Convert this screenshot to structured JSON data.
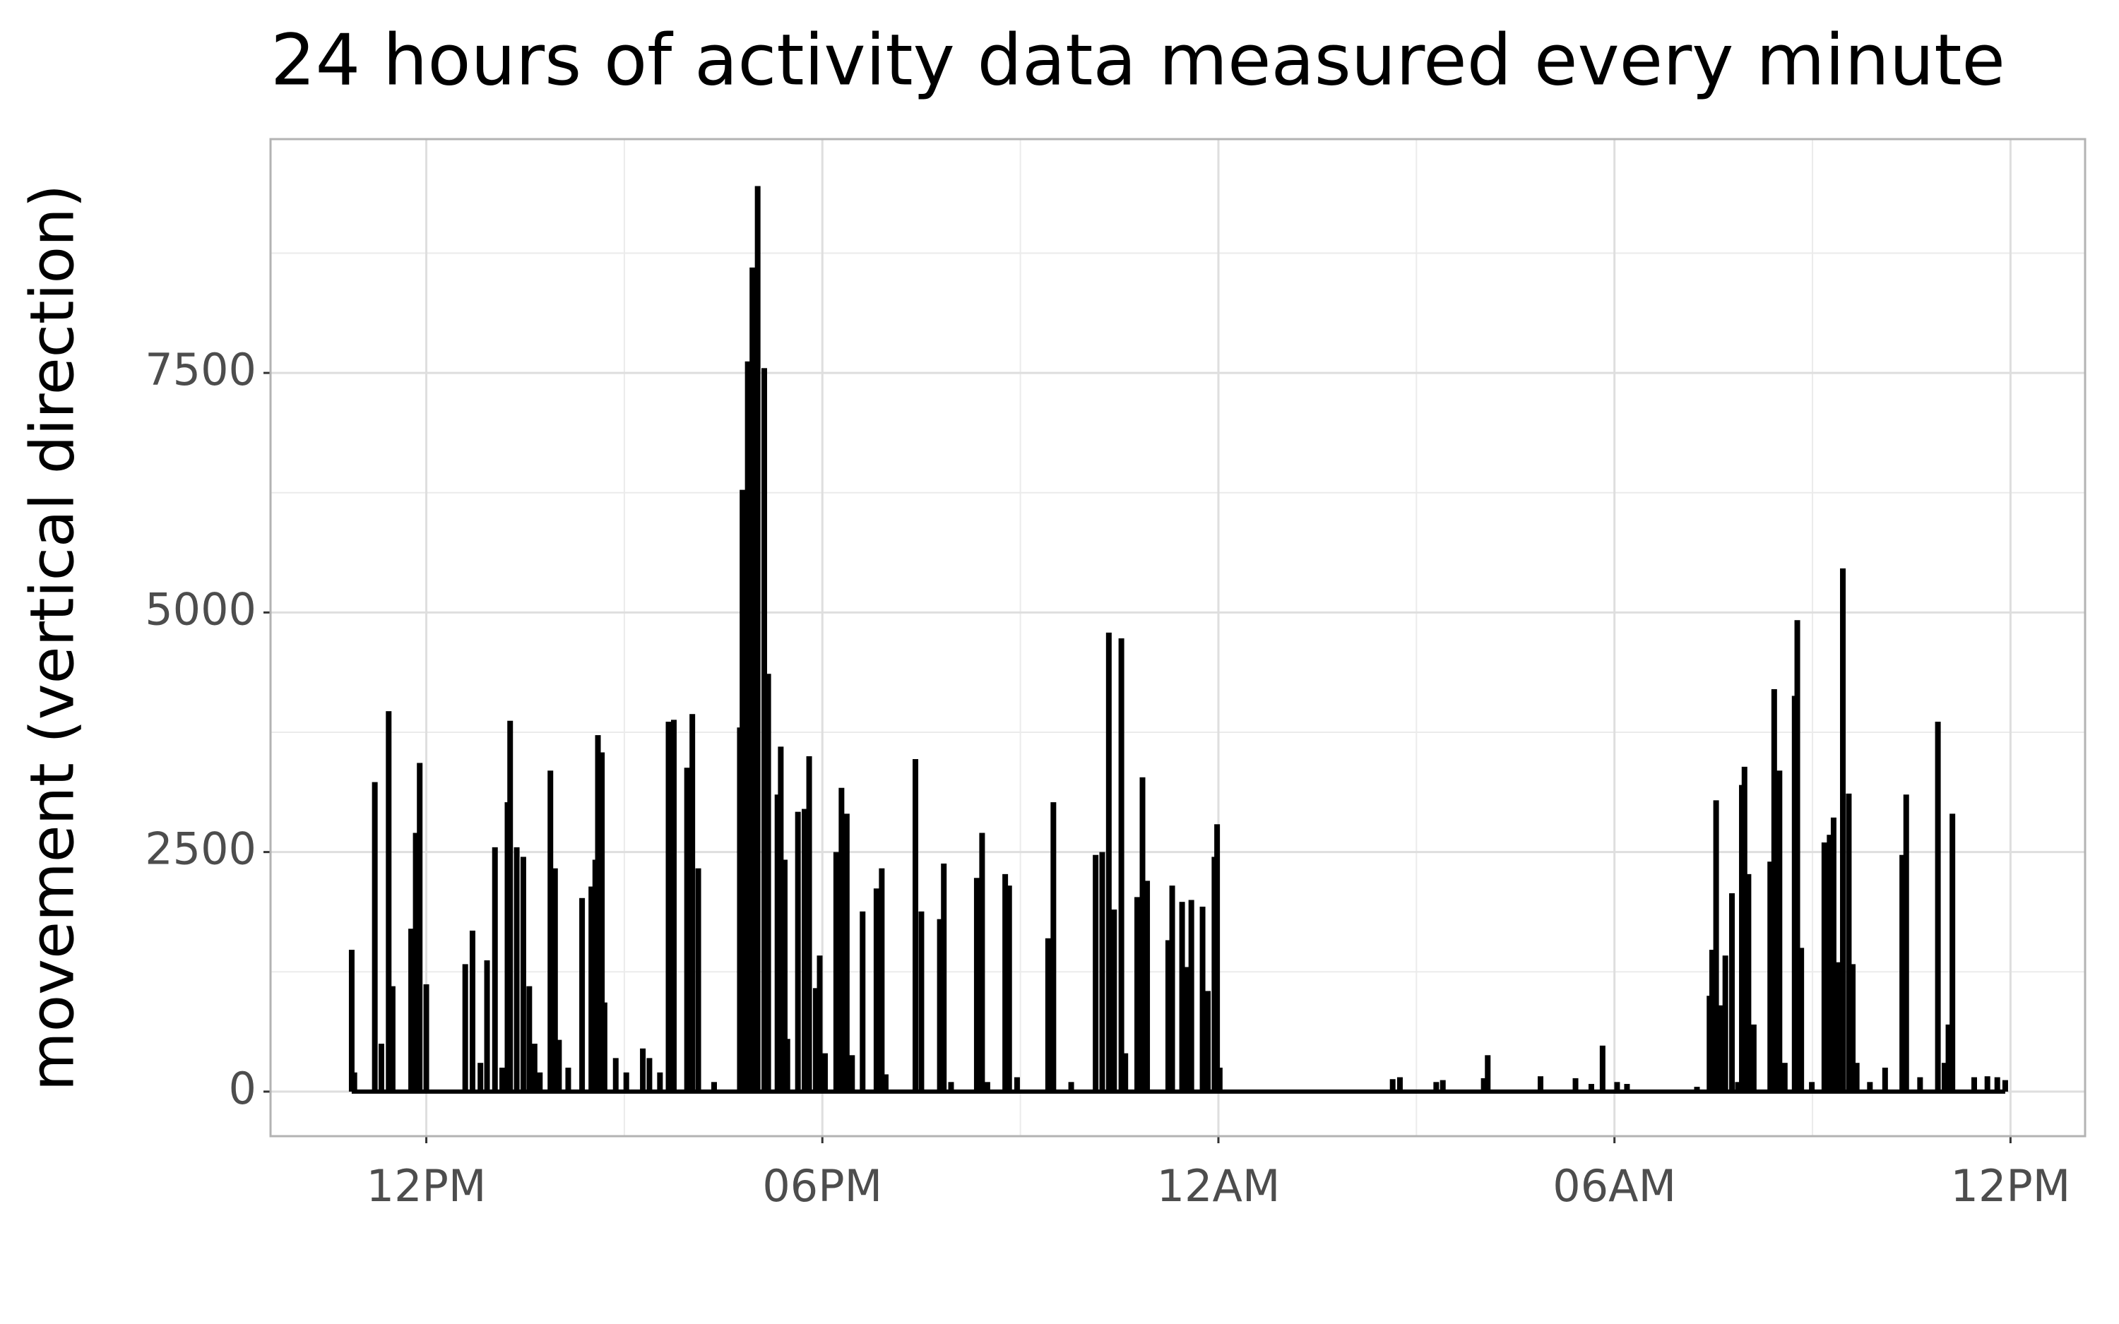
{
  "chart_data": {
    "type": "spike",
    "title": "24 hours of activity data measured every minute",
    "ylabel": "movement (vertical direction)",
    "color": "#000000",
    "grid": true,
    "xlim": [
      9.64,
      37.13
    ],
    "ylim": [
      -465,
      9940
    ],
    "xticks": [
      {
        "value": 12,
        "label": "12PM"
      },
      {
        "value": 18,
        "label": "06PM"
      },
      {
        "value": 24,
        "label": "12AM"
      },
      {
        "value": 30,
        "label": "06AM"
      },
      {
        "value": 36,
        "label": "12PM"
      }
    ],
    "yticks": [
      0,
      2500,
      5000,
      7500
    ],
    "x": [
      10.87,
      10.91,
      11.22,
      11.32,
      11.43,
      11.49,
      11.77,
      11.84,
      11.9,
      12.0,
      12.59,
      12.7,
      12.82,
      12.92,
      13.04,
      13.15,
      13.23,
      13.27,
      13.37,
      13.47,
      13.56,
      13.64,
      13.72,
      13.88,
      13.95,
      14.01,
      14.15,
      14.36,
      14.5,
      14.56,
      14.6,
      14.66,
      14.7,
      14.87,
      15.03,
      15.28,
      15.38,
      15.54,
      15.67,
      15.75,
      15.95,
      16.03,
      16.12,
      16.36,
      16.75,
      16.79,
      16.87,
      16.94,
      17.02,
      17.12,
      17.18,
      17.32,
      17.37,
      17.43,
      17.47,
      17.63,
      17.73,
      17.8,
      17.9,
      17.96,
      18.04,
      18.21,
      18.29,
      18.37,
      18.45,
      18.61,
      18.82,
      18.9,
      18.96,
      19.41,
      19.5,
      19.78,
      19.84,
      19.95,
      20.34,
      20.42,
      20.5,
      20.77,
      20.83,
      20.95,
      21.42,
      21.5,
      21.77,
      22.14,
      22.24,
      22.34,
      22.42,
      22.53,
      22.59,
      22.77,
      22.85,
      22.92,
      23.24,
      23.3,
      23.45,
      23.51,
      23.59,
      23.76,
      23.84,
      23.94,
      23.98,
      24.02,
      26.64,
      26.75,
      27.3,
      27.4,
      28.02,
      28.08,
      28.88,
      29.41,
      29.65,
      29.82,
      30.04,
      30.19,
      31.25,
      31.44,
      31.48,
      31.54,
      31.62,
      31.68,
      31.78,
      31.87,
      31.93,
      31.97,
      32.03,
      32.11,
      32.36,
      32.42,
      32.5,
      32.58,
      32.73,
      32.77,
      32.83,
      32.99,
      33.18,
      33.26,
      33.32,
      33.4,
      33.46,
      33.55,
      33.61,
      33.67,
      33.87,
      34.1,
      34.36,
      34.42,
      34.63,
      34.9,
      35.0,
      35.06,
      35.12,
      35.45,
      35.65,
      35.8,
      35.92
    ],
    "values": [
      1480,
      200,
      3230,
      500,
      3970,
      1100,
      1700,
      2700,
      3430,
      1120,
      1330,
      1680,
      300,
      1370,
      2550,
      250,
      3020,
      3870,
      2550,
      2450,
      1100,
      500,
      200,
      3350,
      2330,
      540,
      250,
      2020,
      2140,
      2420,
      3720,
      3540,
      930,
      350,
      200,
      450,
      350,
      200,
      3860,
      3880,
      3380,
      3940,
      2330,
      100,
      3800,
      6280,
      7620,
      8600,
      9450,
      7550,
      4360,
      3100,
      3600,
      2420,
      550,
      2920,
      2950,
      3500,
      1080,
      1420,
      400,
      2500,
      3170,
      2900,
      380,
      1880,
      2120,
      2330,
      180,
      3470,
      1880,
      1800,
      2380,
      100,
      2230,
      2700,
      100,
      2270,
      2150,
      150,
      1600,
      3020,
      100,
      2470,
      2500,
      4790,
      1900,
      4730,
      400,
      2030,
      3280,
      2200,
      1580,
      2150,
      1980,
      1300,
      2000,
      1930,
      1050,
      2450,
      2790,
      250,
      130,
      150,
      100,
      120,
      140,
      380,
      160,
      140,
      80,
      480,
      100,
      80,
      50,
      1000,
      1480,
      3040,
      900,
      1420,
      2070,
      100,
      3200,
      3390,
      2270,
      700,
      2400,
      4200,
      3350,
      300,
      4130,
      4920,
      1500,
      100,
      2600,
      2680,
      2860,
      1350,
      5460,
      3110,
      1330,
      300,
      100,
      250,
      2470,
      3100,
      150,
      3860,
      300,
      700,
      2900,
      150,
      160,
      150,
      120
    ]
  }
}
